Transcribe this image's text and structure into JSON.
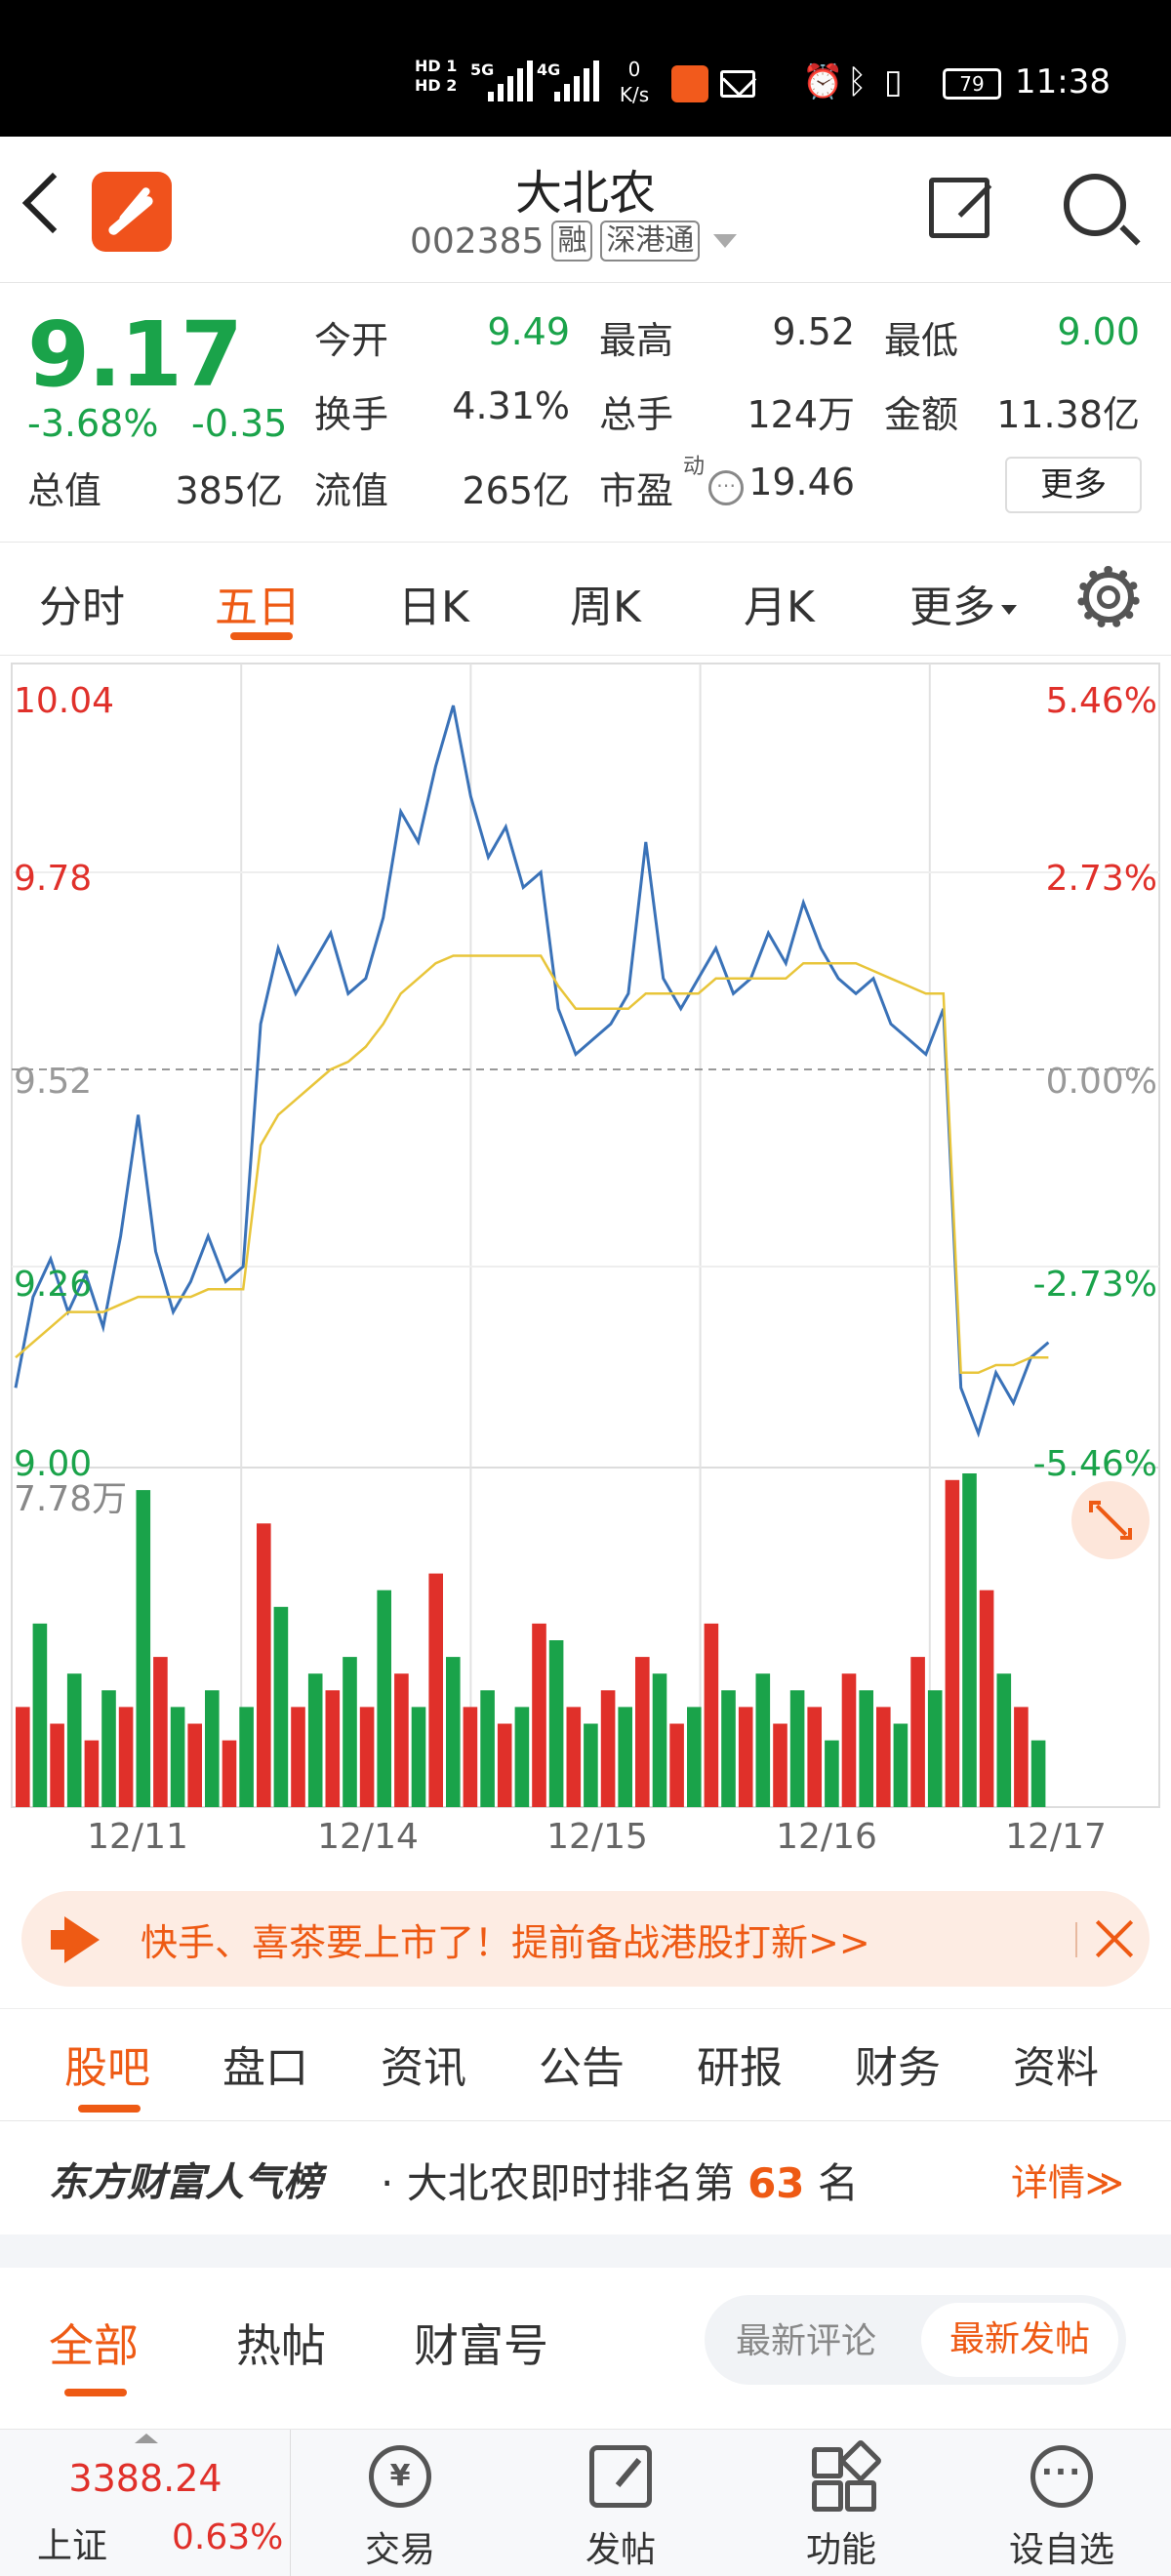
{
  "status_bar": {
    "hd1": "HD 1",
    "hd2": "HD 2",
    "net_5g": "5G",
    "net_4g": "4G",
    "speed_value": "0",
    "speed_unit": "K/s",
    "battery": "79",
    "time": "11:38"
  },
  "header": {
    "title": "大北农",
    "code": "002385",
    "tag_margin": "融",
    "tag_connect": "深港通"
  },
  "quote": {
    "price": "9.17",
    "change_pct": "-3.68%",
    "change_val": "-0.35",
    "open_label": "今开",
    "open_value": "9.49",
    "high_label": "最高",
    "high_value": "9.52",
    "low_label": "最低",
    "low_value": "9.00",
    "turnover_label": "换手",
    "turnover_value": "4.31%",
    "volume_label": "总手",
    "volume_value": "124万",
    "amount_label": "金额",
    "amount_value": "11.38亿",
    "total_cap_label": "总值",
    "total_cap_value": "385亿",
    "float_cap_label": "流值",
    "float_cap_value": "265亿",
    "pe_label": "市盈",
    "pe_dynamic_mark": "动",
    "pe_value": "19.46",
    "more_label": "更多",
    "colors": {
      "down": "#1aa34a",
      "up": "#e0302a"
    }
  },
  "chart_tabs": {
    "items": [
      "分时",
      "五日",
      "日K",
      "周K",
      "月K",
      "更多"
    ],
    "active": "五日"
  },
  "chart_data": {
    "type": "line",
    "title": "",
    "y_left_labels": [
      "10.04",
      "9.78",
      "9.52",
      "9.26",
      "9.00"
    ],
    "y_right_labels": [
      "5.46%",
      "2.73%",
      "0.00%",
      "-2.73%",
      "-5.46%"
    ],
    "ylim": [
      9.0,
      10.04
    ],
    "prev_close": 9.52,
    "x_labels": [
      "12/11",
      "12/14",
      "12/15",
      "12/16",
      "12/17"
    ],
    "volume_max_label": "7.78万",
    "series": [
      {
        "color": "#3a72b8",
        "values": [
          9.1,
          9.22,
          9.27,
          9.2,
          9.25,
          9.18,
          9.3,
          9.46,
          9.28,
          9.2,
          9.24,
          9.3,
          9.24,
          9.26,
          9.58,
          9.68,
          9.62,
          9.66,
          9.7,
          9.62,
          9.64,
          9.72,
          9.86,
          9.82,
          9.92,
          10.0,
          9.88,
          9.8,
          9.84,
          9.76,
          9.78,
          9.6,
          9.54,
          9.56,
          9.58,
          9.62,
          9.82,
          9.64,
          9.6,
          9.64,
          9.68,
          9.62,
          9.64,
          9.7,
          9.66,
          9.74,
          9.68,
          9.64,
          9.62,
          9.64,
          9.58,
          9.56,
          9.54,
          9.6,
          9.1,
          9.04,
          9.12,
          9.08,
          9.14,
          9.16
        ]
      },
      {
        "color": "#e8c53a",
        "values": [
          9.14,
          9.16,
          9.18,
          9.2,
          9.2,
          9.2,
          9.21,
          9.22,
          9.22,
          9.22,
          9.22,
          9.23,
          9.23,
          9.23,
          9.42,
          9.46,
          9.48,
          9.5,
          9.52,
          9.53,
          9.55,
          9.58,
          9.62,
          9.64,
          9.66,
          9.67,
          9.67,
          9.67,
          9.67,
          9.67,
          9.67,
          9.63,
          9.6,
          9.6,
          9.6,
          9.6,
          9.62,
          9.62,
          9.62,
          9.62,
          9.64,
          9.64,
          9.64,
          9.64,
          9.64,
          9.66,
          9.66,
          9.66,
          9.66,
          9.65,
          9.64,
          9.63,
          9.62,
          9.62,
          9.12,
          9.12,
          9.13,
          9.13,
          9.14,
          9.14
        ]
      }
    ],
    "volume_colors": {
      "up": "#e0302a",
      "down": "#1aa34a"
    },
    "volume_values": [
      0.3,
      0.55,
      0.25,
      0.4,
      0.2,
      0.35,
      0.3,
      0.95,
      0.45,
      0.3,
      0.25,
      0.35,
      0.2,
      0.3,
      0.85,
      0.6,
      0.3,
      0.4,
      0.35,
      0.45,
      0.3,
      0.65,
      0.4,
      0.3,
      0.7,
      0.45,
      0.3,
      0.35,
      0.25,
      0.3,
      0.55,
      0.5,
      0.3,
      0.25,
      0.35,
      0.3,
      0.45,
      0.4,
      0.25,
      0.3,
      0.55,
      0.35,
      0.3,
      0.4,
      0.25,
      0.35,
      0.3,
      0.2,
      0.4,
      0.35,
      0.3,
      0.25,
      0.45,
      0.35,
      0.98,
      1.0,
      0.65,
      0.4,
      0.3,
      0.2
    ]
  },
  "banner": {
    "text": "快手、喜茶要上市了！提前备战港股打新>>"
  },
  "sub_tabs": {
    "items": [
      "股吧",
      "盘口",
      "资讯",
      "公告",
      "研报",
      "财务",
      "资料"
    ],
    "active": "股吧"
  },
  "popularity": {
    "brand": "东方财富人气榜",
    "text_prefix": "· 大北农即时排名第",
    "rank": "63",
    "text_suffix": "名",
    "detail": "详情≫"
  },
  "filter": {
    "tabs": [
      "全部",
      "热帖",
      "财富号"
    ],
    "active": "全部",
    "sort_options": [
      "最新评论",
      "最新发帖"
    ],
    "sort_active": "最新发帖"
  },
  "bottom_nav": {
    "index_value": "3388.24",
    "index_name": "上证",
    "index_change": "0.63%",
    "trade_icon_glyph": "¥",
    "watch_icon_glyph": "···",
    "items": [
      "交易",
      "发帖",
      "功能",
      "设自选"
    ]
  }
}
